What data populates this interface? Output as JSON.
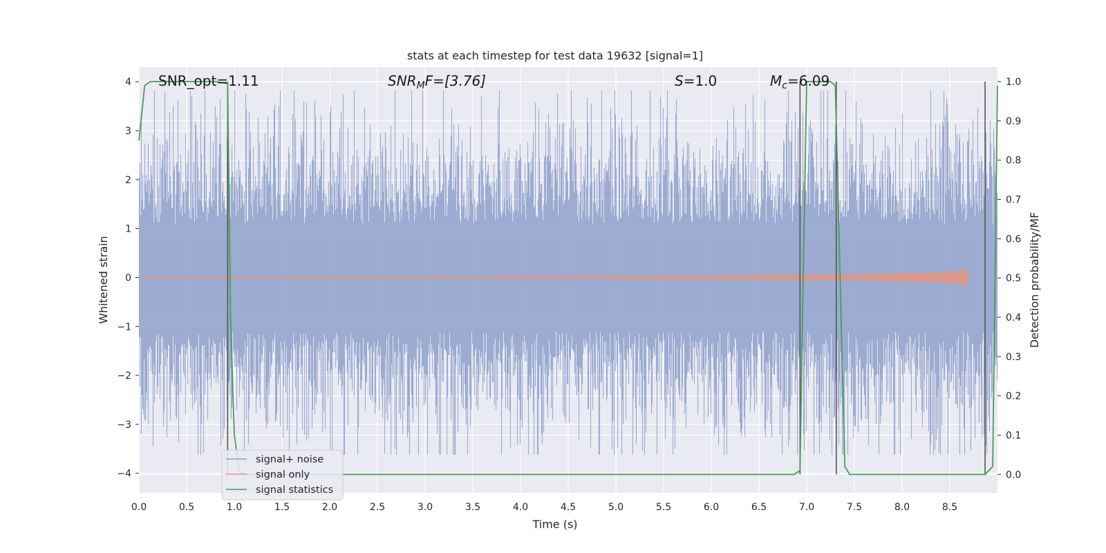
{
  "chart_data": {
    "type": "line",
    "title": "stats at each timestep for test data 19632 [signal=1]",
    "xlabel": "Time (s)",
    "ylabel": "Whitened strain",
    "y2label": "Detection probability/MF",
    "xlim": [
      0,
      9.0
    ],
    "ylim": [
      -4.4,
      4.3
    ],
    "y2lim": [
      -0.047,
      1.037
    ],
    "x_ticks": [
      0.0,
      0.5,
      1.0,
      1.5,
      2.0,
      2.5,
      3.0,
      3.5,
      4.0,
      4.5,
      5.0,
      5.5,
      6.0,
      6.5,
      7.0,
      7.5,
      8.0,
      8.5
    ],
    "y_ticks": [
      4,
      3,
      2,
      1,
      0,
      -1,
      -2,
      -3,
      -4
    ],
    "y2_ticks": [
      1.0,
      0.9,
      0.8,
      0.7,
      0.6,
      0.5,
      0.4,
      0.3,
      0.2,
      0.1,
      0.0
    ],
    "grid": true,
    "legend_position": "lower-left",
    "annotations": {
      "snr_opt": "SNR_opt=1.11",
      "snr_mf_main": "SNR",
      "snr_mf_sub": "M",
      "snr_mf_rest": "F=[3.76]",
      "s_main": "S",
      "s_rest": "=1.0",
      "mc_main": "M",
      "mc_sub": "c",
      "mc_rest": "=6.09"
    },
    "series": [
      {
        "name": "signal+ noise",
        "color": "#8da0cb",
        "noise_std": 1.0,
        "max_value": 3.82,
        "min_value": -3.62
      },
      {
        "name": "signal only",
        "color": "#e5957b",
        "envelope_x": [
          0.0,
          2.0,
          4.0,
          5.0,
          6.0,
          7.0,
          7.5,
          8.0,
          8.4,
          8.6,
          8.65,
          8.7
        ],
        "envelope_y": [
          0.01,
          0.015,
          0.02,
          0.025,
          0.035,
          0.05,
          0.06,
          0.08,
          0.1,
          0.13,
          0.18,
          0.05
        ]
      },
      {
        "name": "signal statistics",
        "color": "#4a9c52",
        "axis": "right",
        "x": [
          0.0,
          0.06,
          0.12,
          0.5,
          0.8,
          0.93,
          0.96,
          1.0,
          1.05,
          1.1,
          3.0,
          6.0,
          6.87,
          6.93,
          6.97,
          7.0,
          7.1,
          7.25,
          7.3,
          7.35,
          7.4,
          7.45,
          7.5,
          8.0,
          8.5,
          8.8,
          8.87,
          8.95,
          9.0
        ],
        "y": [
          0.85,
          0.99,
          1.0,
          1.0,
          1.0,
          0.995,
          0.4,
          0.1,
          0.01,
          0.0,
          0.0,
          0.0,
          0.0,
          0.01,
          0.6,
          1.0,
          1.0,
          1.0,
          0.99,
          0.5,
          0.02,
          0.0,
          0.0,
          0.0,
          0.0,
          0.0,
          0.0,
          0.02,
          0.99
        ]
      }
    ],
    "vertical_markers_x": [
      0.93,
      6.93,
      7.31,
      8.87
    ]
  }
}
